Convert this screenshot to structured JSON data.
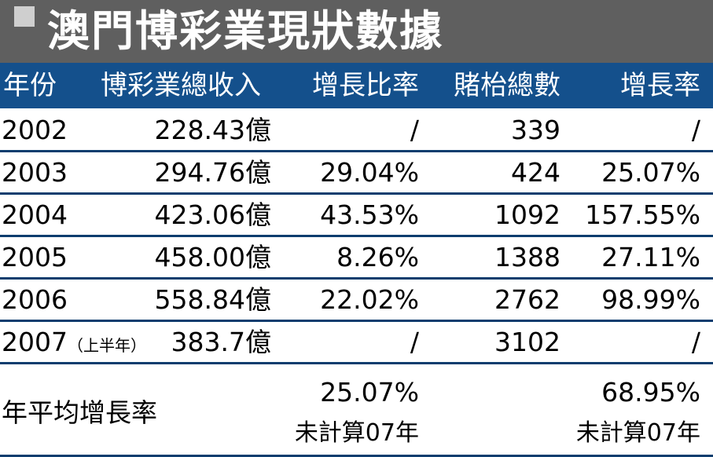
{
  "title": "澳門博彩業現狀數據",
  "headers": [
    "年份",
    "博彩業總收入",
    "增長比率",
    "賭枱總數",
    "增長率"
  ],
  "rows": [
    {
      "year": "2002",
      "year_note": "",
      "revenue": "228.43億",
      "revenue_growth": "/",
      "tables": "339",
      "tables_growth": "/"
    },
    {
      "year": "2003",
      "year_note": "",
      "revenue": "294.76億",
      "revenue_growth": "29.04%",
      "tables": "424",
      "tables_growth": "25.07%"
    },
    {
      "year": "2004",
      "year_note": "",
      "revenue": "423.06億",
      "revenue_growth": "43.53%",
      "tables": "1092",
      "tables_growth": "157.55%"
    },
    {
      "year": "2005",
      "year_note": "",
      "revenue": "458.00億",
      "revenue_growth": "8.26%",
      "tables": "1388",
      "tables_growth": "27.11%"
    },
    {
      "year": "2006",
      "year_note": "",
      "revenue": "558.84億",
      "revenue_growth": "22.02%",
      "tables": "2762",
      "tables_growth": "98.99%"
    },
    {
      "year": "2007",
      "year_note": "（上半年）",
      "revenue": "383.7億",
      "revenue_growth": "/",
      "tables": "3102",
      "tables_growth": "/"
    }
  ],
  "summary": {
    "label": "年平均增長率",
    "revenue_growth": "25.07%",
    "revenue_note": "未計算07年",
    "tables_growth": "68.95%",
    "tables_note": "未計算07年"
  }
}
